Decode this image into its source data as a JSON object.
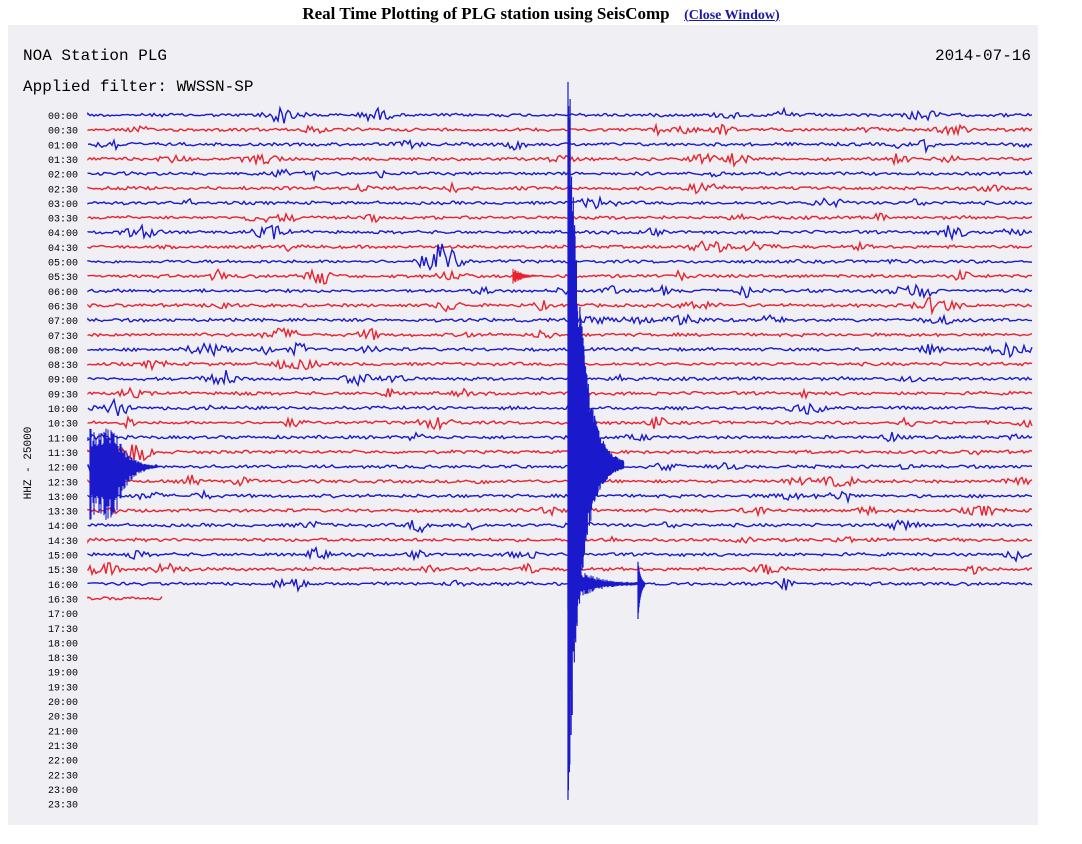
{
  "header": {
    "title": "Real Time Plotting of PLG station using SeisComp",
    "close_label": "Close Window"
  },
  "plot": {
    "station": "NOA Station PLG",
    "date": "2014-07-16",
    "filter": "Applied filter: WWSSN-SP",
    "channel_label": "HHZ - 25000",
    "hours": [
      "00:00",
      "00:30",
      "01:00",
      "01:30",
      "02:00",
      "02:30",
      "03:00",
      "03:30",
      "04:00",
      "04:30",
      "05:00",
      "05:30",
      "06:00",
      "06:30",
      "07:00",
      "07:30",
      "08:00",
      "08:30",
      "09:00",
      "09:30",
      "10:00",
      "10:30",
      "11:00",
      "11:30",
      "12:00",
      "12:30",
      "13:00",
      "13:30",
      "14:00",
      "14:30",
      "15:00",
      "15:30",
      "16:00",
      "16:30",
      "17:00",
      "17:30",
      "18:00",
      "18:30",
      "19:00",
      "19:30",
      "20:00",
      "20:30",
      "21:00",
      "21:30",
      "22:00",
      "22:30",
      "23:00",
      "23:30"
    ],
    "colors": {
      "blue": "#1a1acc",
      "red": "#e8222e"
    },
    "recorded_rows": 34,
    "last_row_extent": 0.08
  }
}
